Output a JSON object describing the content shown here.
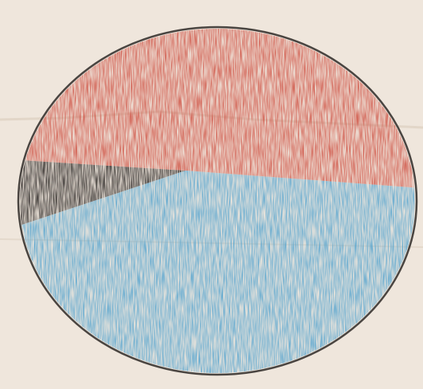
{
  "chart_data": {
    "type": "pie",
    "values": [
      6,
      45,
      49
    ],
    "colors": [
      "#2a2624",
      "#d0584a",
      "#5aa6cf"
    ]
  }
}
